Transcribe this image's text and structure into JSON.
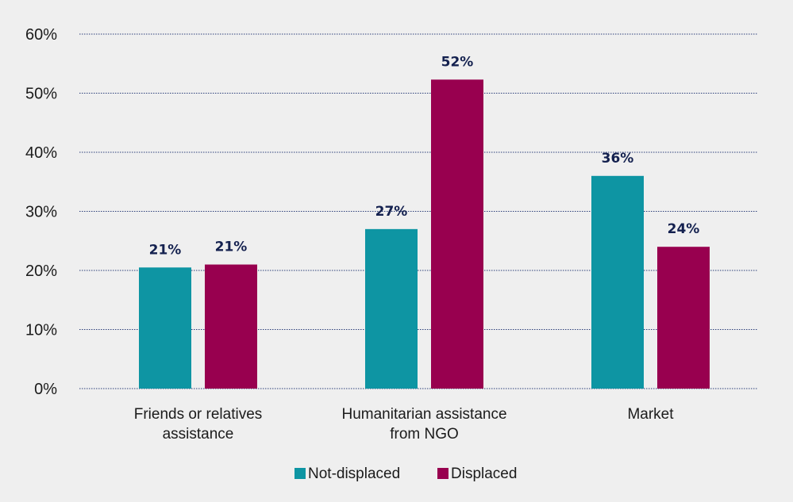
{
  "chart_data": {
    "type": "bar",
    "title": "",
    "xlabel": "",
    "ylabel": "",
    "categories": [
      [
        "Friends or relatives",
        "assistance"
      ],
      [
        "Humanitarian assistance",
        "from NGO"
      ],
      [
        "Market"
      ]
    ],
    "series": [
      {
        "name": "Not-displaced",
        "color": "#0e95a3",
        "values": [
          20.5,
          27.0,
          36.0
        ],
        "labels": [
          "21%",
          "27%",
          "36%"
        ]
      },
      {
        "name": "Displaced",
        "color": "#98004f",
        "values": [
          21.0,
          52.3,
          24.0
        ],
        "labels": [
          "21%",
          "52%",
          "24%"
        ]
      }
    ],
    "ylim": [
      0,
      60
    ],
    "yticks": [
      0,
      10,
      20,
      30,
      40,
      50,
      60
    ],
    "ytick_labels": [
      "0%",
      "10%",
      "20%",
      "30%",
      "40%",
      "50%",
      "60%"
    ],
    "grid": true,
    "legend_position": "bottom"
  }
}
